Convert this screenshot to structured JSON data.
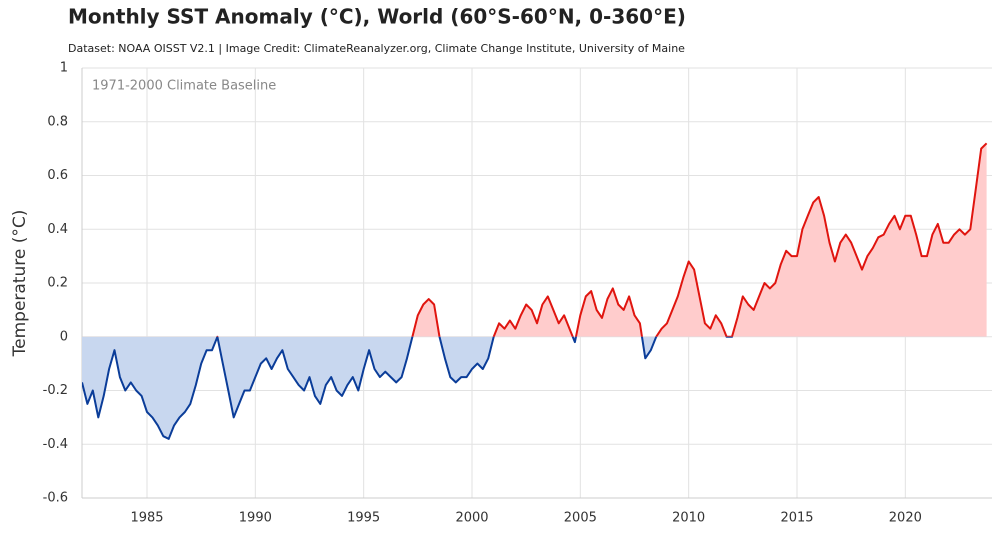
{
  "chart_data": {
    "type": "area_anomaly",
    "title": "Monthly SST Anomaly (°C), World (60°S-60°N, 0-360°E)",
    "subtitle": "Dataset: NOAA OISST V2.1 | Image Credit: ClimateReanalyzer.org, Climate Change Institute, University of Maine",
    "annotation": "1971-2000 Climate Baseline",
    "y_label": "Temperature (°C)",
    "positive_color": "#e0150f",
    "positive_fill": "#ffcccc",
    "negative_color": "#0b3d99",
    "negative_fill": "#c8d7ef",
    "grid": true,
    "xlim": [
      1982,
      2024
    ],
    "xticks": [
      1985,
      1990,
      1995,
      2000,
      2005,
      2010,
      2015,
      2020
    ],
    "ylim": [
      -0.6,
      1
    ],
    "yticks": [
      1,
      0.8,
      0.6,
      0.4,
      0.2,
      0,
      -0.2,
      -0.4,
      -0.6
    ],
    "x": [
      1982,
      1982.25,
      1982.5,
      1982.75,
      1983,
      1983.25,
      1983.5,
      1983.75,
      1984,
      1984.25,
      1984.5,
      1984.75,
      1985,
      1985.25,
      1985.5,
      1985.75,
      1986,
      1986.25,
      1986.5,
      1986.75,
      1987,
      1987.25,
      1987.5,
      1987.75,
      1988,
      1988.25,
      1988.5,
      1988.75,
      1989,
      1989.25,
      1989.5,
      1989.75,
      1990,
      1990.25,
      1990.5,
      1990.75,
      1991,
      1991.25,
      1991.5,
      1991.75,
      1992,
      1992.25,
      1992.5,
      1992.75,
      1993,
      1993.25,
      1993.5,
      1993.75,
      1994,
      1994.25,
      1994.5,
      1994.75,
      1995,
      1995.25,
      1995.5,
      1995.75,
      1996,
      1996.25,
      1996.5,
      1996.75,
      1997,
      1997.25,
      1997.5,
      1997.75,
      1998,
      1998.25,
      1998.5,
      1998.75,
      1999,
      1999.25,
      1999.5,
      1999.75,
      2000,
      2000.25,
      2000.5,
      2000.75,
      2001,
      2001.25,
      2001.5,
      2001.75,
      2002,
      2002.25,
      2002.5,
      2002.75,
      2003,
      2003.25,
      2003.5,
      2003.75,
      2004,
      2004.25,
      2004.5,
      2004.75,
      2005,
      2005.25,
      2005.5,
      2005.75,
      2006,
      2006.25,
      2006.5,
      2006.75,
      2007,
      2007.25,
      2007.5,
      2007.75,
      2008,
      2008.25,
      2008.5,
      2008.75,
      2009,
      2009.25,
      2009.5,
      2009.75,
      2010,
      2010.25,
      2010.5,
      2010.75,
      2011,
      2011.25,
      2011.5,
      2011.75,
      2012,
      2012.25,
      2012.5,
      2012.75,
      2013,
      2013.25,
      2013.5,
      2013.75,
      2014,
      2014.25,
      2014.5,
      2014.75,
      2015,
      2015.25,
      2015.5,
      2015.75,
      2016,
      2016.25,
      2016.5,
      2016.75,
      2017,
      2017.25,
      2017.5,
      2017.75,
      2018,
      2018.25,
      2018.5,
      2018.75,
      2019,
      2019.25,
      2019.5,
      2019.75,
      2020,
      2020.25,
      2020.5,
      2020.75,
      2021,
      2021.25,
      2021.5,
      2021.75,
      2022,
      2022.25,
      2022.5,
      2022.75,
      2023,
      2023.25,
      2023.5,
      2023.75
    ],
    "values": [
      -0.17,
      -0.25,
      -0.2,
      -0.3,
      -0.22,
      -0.12,
      -0.05,
      -0.15,
      -0.2,
      -0.17,
      -0.2,
      -0.22,
      -0.28,
      -0.3,
      -0.33,
      -0.37,
      -0.38,
      -0.33,
      -0.3,
      -0.28,
      -0.25,
      -0.18,
      -0.1,
      -0.05,
      -0.05,
      0.0,
      -0.1,
      -0.2,
      -0.3,
      -0.25,
      -0.2,
      -0.2,
      -0.15,
      -0.1,
      -0.08,
      -0.12,
      -0.08,
      -0.05,
      -0.12,
      -0.15,
      -0.18,
      -0.2,
      -0.15,
      -0.22,
      -0.25,
      -0.18,
      -0.15,
      -0.2,
      -0.22,
      -0.18,
      -0.15,
      -0.2,
      -0.12,
      -0.05,
      -0.12,
      -0.15,
      -0.13,
      -0.15,
      -0.17,
      -0.15,
      -0.08,
      0.0,
      0.08,
      0.12,
      0.14,
      0.12,
      0.0,
      -0.08,
      -0.15,
      -0.17,
      -0.15,
      -0.15,
      -0.12,
      -0.1,
      -0.12,
      -0.08,
      0.0,
      0.05,
      0.03,
      0.06,
      0.03,
      0.08,
      0.12,
      0.1,
      0.05,
      0.12,
      0.15,
      0.1,
      0.05,
      0.08,
      0.03,
      -0.02,
      0.08,
      0.15,
      0.17,
      0.1,
      0.07,
      0.14,
      0.18,
      0.12,
      0.1,
      0.15,
      0.08,
      0.05,
      -0.08,
      -0.05,
      0.0,
      0.03,
      0.05,
      0.1,
      0.15,
      0.22,
      0.28,
      0.25,
      0.15,
      0.05,
      0.03,
      0.08,
      0.05,
      0.0,
      0.0,
      0.07,
      0.15,
      0.12,
      0.1,
      0.15,
      0.2,
      0.18,
      0.2,
      0.27,
      0.32,
      0.3,
      0.3,
      0.4,
      0.45,
      0.5,
      0.52,
      0.45,
      0.35,
      0.28,
      0.35,
      0.38,
      0.35,
      0.3,
      0.25,
      0.3,
      0.33,
      0.37,
      0.38,
      0.42,
      0.45,
      0.4,
      0.45,
      0.45,
      0.38,
      0.3,
      0.3,
      0.38,
      0.42,
      0.35,
      0.35,
      0.38,
      0.4,
      0.38,
      0.4,
      0.55,
      0.7,
      0.72
    ]
  }
}
